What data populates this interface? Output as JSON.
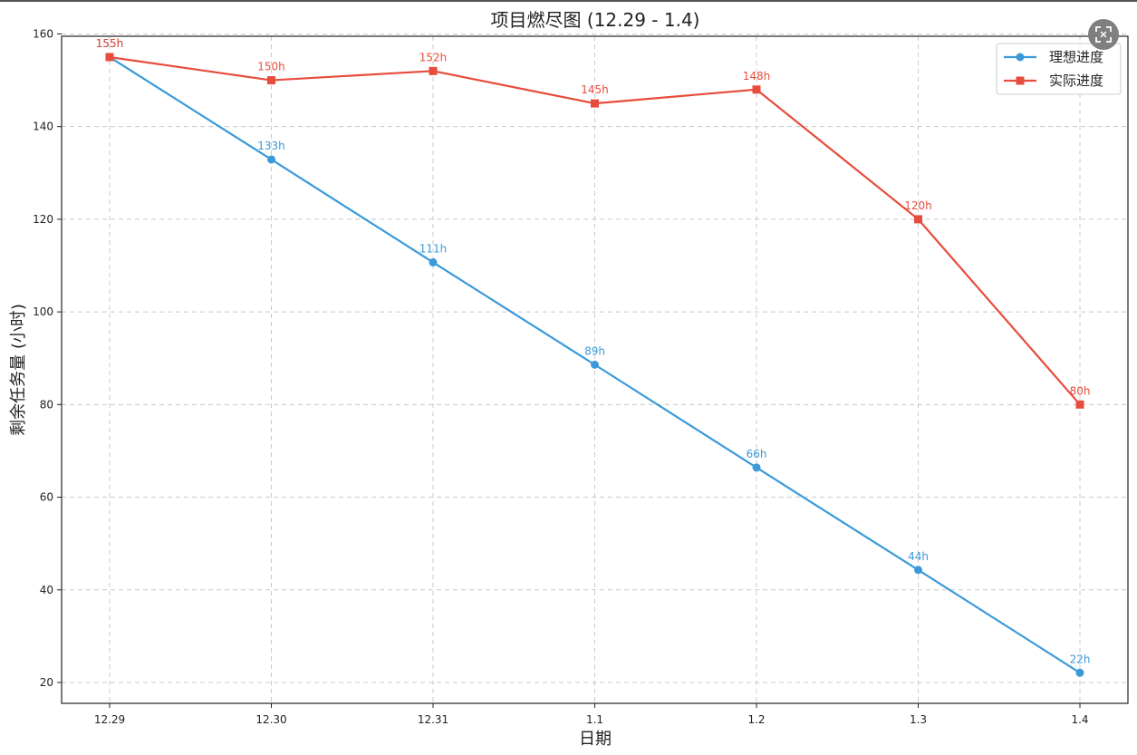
{
  "colors": {
    "ideal": "#3a9ad9",
    "actual": "#e74c3c",
    "grid": "#c8c8c8",
    "axis": "#222222"
  },
  "expand_button": {
    "icon": "expand-icon"
  },
  "chart_data": {
    "type": "line",
    "title": "项目燃尽图 (12.29 - 1.4)",
    "xlabel": "日期",
    "ylabel": "剩余任务量 (小时)",
    "categories": [
      "12.29",
      "12.30",
      "12.31",
      "1.1",
      "1.2",
      "1.3",
      "1.4"
    ],
    "ylim": [
      15.5,
      159.5
    ],
    "yticks": [
      20,
      40,
      60,
      80,
      100,
      120,
      140,
      160
    ],
    "grid": true,
    "legend_position": "top-right",
    "series": [
      {
        "name": "理想进度",
        "marker": "circle",
        "values": [
          155,
          132.9,
          110.7,
          88.6,
          66.4,
          44.3,
          22.1
        ],
        "labels": [
          "155h",
          "133h",
          "111h",
          "89h",
          "66h",
          "44h",
          "22h"
        ]
      },
      {
        "name": "实际进度",
        "marker": "square",
        "values": [
          155,
          150,
          152,
          145,
          148,
          120,
          80
        ],
        "labels": [
          "155h",
          "150h",
          "152h",
          "145h",
          "148h",
          "120h",
          "80h"
        ]
      }
    ]
  }
}
